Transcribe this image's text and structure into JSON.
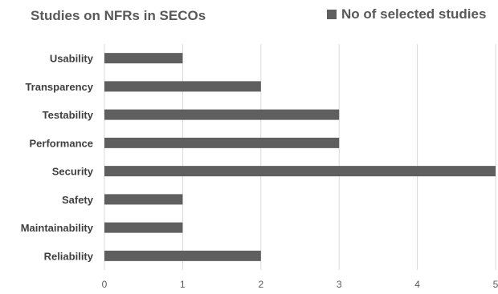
{
  "chart_data": {
    "type": "bar",
    "orientation": "horizontal",
    "title": "Studies on NFRs in SECOs",
    "xlabel": "",
    "ylabel": "",
    "categories": [
      "Usability",
      "Transparency",
      "Testability",
      "Performance",
      "Security",
      "Safety",
      "Maintainability",
      "Reliability"
    ],
    "series": [
      {
        "name": "No of selected studies",
        "values": [
          1,
          2,
          3,
          3,
          5,
          1,
          1,
          2
        ]
      }
    ],
    "xlim": [
      0,
      5
    ],
    "xticks": [
      "0",
      "1",
      "2",
      "3",
      "4",
      "5"
    ],
    "grid": true,
    "legend_position": "top-right",
    "colors": {
      "bar": "#5f5f5f",
      "grid": "#d9d9d9"
    }
  }
}
